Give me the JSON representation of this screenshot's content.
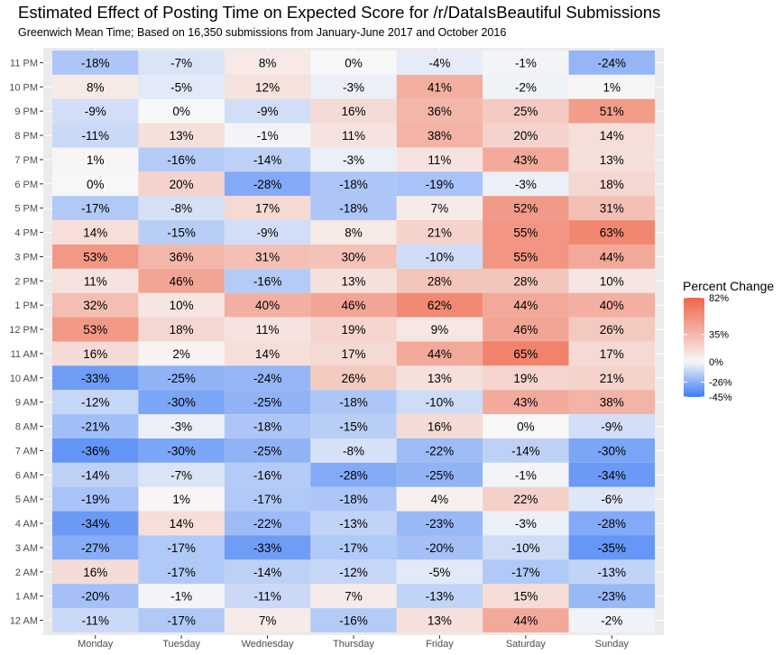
{
  "title": "Estimated Effect of Posting Time on Expected Score for /r/DataIsBeautiful Submissions",
  "subtitle": "Greenwich Mean Time; Based on 16,350 submissions from January-June 2017 and October 2016",
  "chart_data": {
    "type": "heatmap",
    "x_categories": [
      "Monday",
      "Tuesday",
      "Wednesday",
      "Thursday",
      "Friday",
      "Saturday",
      "Sunday"
    ],
    "y_categories": [
      "11 PM",
      "10 PM",
      "9 PM",
      "8 PM",
      "7 PM",
      "6 PM",
      "5 PM",
      "4 PM",
      "3 PM",
      "2 PM",
      "1 PM",
      "12 PM",
      "11 AM",
      "10 AM",
      "9 AM",
      "8 AM",
      "7 AM",
      "6 AM",
      "5 AM",
      "4 AM",
      "3 AM",
      "2 AM",
      "1 AM",
      "12 AM"
    ],
    "values": [
      [
        -18,
        -7,
        8,
        0,
        -4,
        -1,
        -24
      ],
      [
        8,
        -5,
        12,
        -3,
        41,
        -2,
        1
      ],
      [
        -9,
        0,
        -9,
        16,
        36,
        25,
        51
      ],
      [
        -11,
        13,
        -1,
        11,
        38,
        20,
        14
      ],
      [
        1,
        -16,
        -14,
        -3,
        11,
        43,
        13
      ],
      [
        0,
        20,
        -28,
        -18,
        -19,
        -3,
        18
      ],
      [
        -17,
        -8,
        17,
        -18,
        7,
        52,
        31
      ],
      [
        14,
        -15,
        -9,
        8,
        21,
        55,
        63
      ],
      [
        53,
        36,
        31,
        30,
        -10,
        55,
        44
      ],
      [
        11,
        46,
        -16,
        13,
        28,
        28,
        10
      ],
      [
        32,
        10,
        40,
        46,
        62,
        44,
        40
      ],
      [
        53,
        18,
        11,
        19,
        9,
        46,
        26
      ],
      [
        16,
        2,
        14,
        17,
        44,
        65,
        17
      ],
      [
        -33,
        -25,
        -24,
        26,
        13,
        19,
        21
      ],
      [
        -12,
        -30,
        -25,
        -18,
        -10,
        43,
        38
      ],
      [
        -21,
        -3,
        -18,
        -15,
        16,
        0,
        -9
      ],
      [
        -36,
        -30,
        -25,
        -8,
        -22,
        -14,
        -30
      ],
      [
        -14,
        -7,
        -16,
        -28,
        -25,
        -1,
        -34
      ],
      [
        -19,
        1,
        -17,
        -18,
        4,
        22,
        -6
      ],
      [
        -34,
        14,
        -22,
        -13,
        -23,
        -3,
        -28
      ],
      [
        -27,
        -17,
        -33,
        -17,
        -20,
        -10,
        -35
      ],
      [
        16,
        -17,
        -14,
        -12,
        -5,
        -17,
        -13
      ],
      [
        -20,
        -1,
        -11,
        7,
        -13,
        15,
        -23
      ],
      [
        -11,
        -17,
        7,
        -16,
        13,
        44,
        -2
      ]
    ],
    "value_suffix": "%",
    "legend": {
      "title": "Percent Change",
      "breaks": [
        82,
        35,
        0,
        -26,
        -45
      ],
      "labels": [
        "82%",
        "35%",
        "0%",
        "-26%",
        "-45%"
      ],
      "range": [
        -45,
        82
      ],
      "placement": "right"
    },
    "colors": {
      "low": "#3d7cf6",
      "mid": "#f7f7f7",
      "high": "#ef6548",
      "panel": "#ebebeb"
    }
  }
}
